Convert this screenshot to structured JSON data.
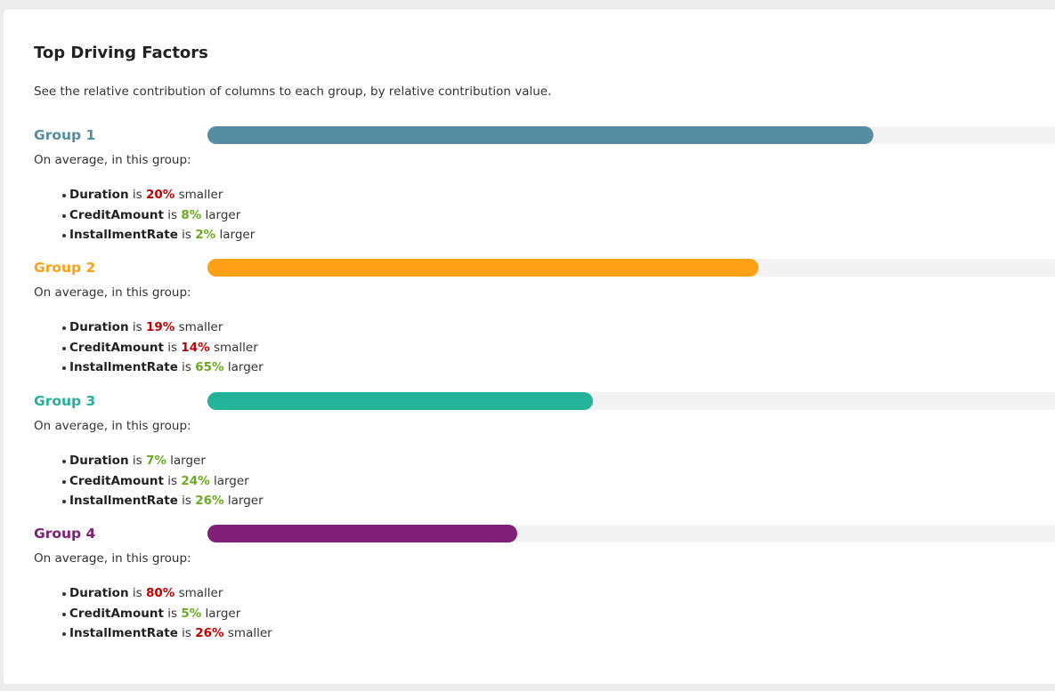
{
  "panel": {
    "title": "Top Driving Factors",
    "description": "See the relative contribution of columns to each group, by relative contribution value."
  },
  "colors": {
    "positive": "#6aaa1e",
    "negative": "#c00000"
  },
  "groups": [
    {
      "label": "Group 1",
      "color": "#578da0",
      "contribution": 0.778,
      "summary": "On average, in this group:",
      "factors": [
        {
          "name": "Duration",
          "is": " is ",
          "percent": "20%",
          "direction": "smaller"
        },
        {
          "name": "CreditAmount",
          "is": " is ",
          "percent": "8%",
          "direction": "larger"
        },
        {
          "name": "InstallmentRate",
          "is": " is ",
          "percent": "2%",
          "direction": "larger"
        }
      ]
    },
    {
      "label": "Group 2",
      "color": "#ffa114",
      "contribution": 0.644,
      "summary": "On average, in this group:",
      "factors": [
        {
          "name": "Duration",
          "is": " is ",
          "percent": "19%",
          "direction": "smaller"
        },
        {
          "name": "CreditAmount",
          "is": " is ",
          "percent": "14%",
          "direction": "smaller"
        },
        {
          "name": "InstallmentRate",
          "is": " is ",
          "percent": "65%",
          "direction": "larger"
        }
      ]
    },
    {
      "label": "Group 3",
      "color": "#24b399",
      "contribution": 0.451,
      "summary": "On average, in this group:",
      "factors": [
        {
          "name": "Duration",
          "is": " is ",
          "percent": "7%",
          "direction": "larger"
        },
        {
          "name": "CreditAmount",
          "is": " is ",
          "percent": "24%",
          "direction": "larger"
        },
        {
          "name": "InstallmentRate",
          "is": " is ",
          "percent": "26%",
          "direction": "larger"
        }
      ]
    },
    {
      "label": "Group 4",
      "color": "#801e78",
      "contribution": 0.362,
      "summary": "On average, in this group:",
      "factors": [
        {
          "name": "Duration",
          "is": " is ",
          "percent": "80%",
          "direction": "smaller"
        },
        {
          "name": "CreditAmount",
          "is": " is ",
          "percent": "5%",
          "direction": "larger"
        },
        {
          "name": "InstallmentRate",
          "is": " is ",
          "percent": "26%",
          "direction": "smaller"
        }
      ]
    }
  ]
}
